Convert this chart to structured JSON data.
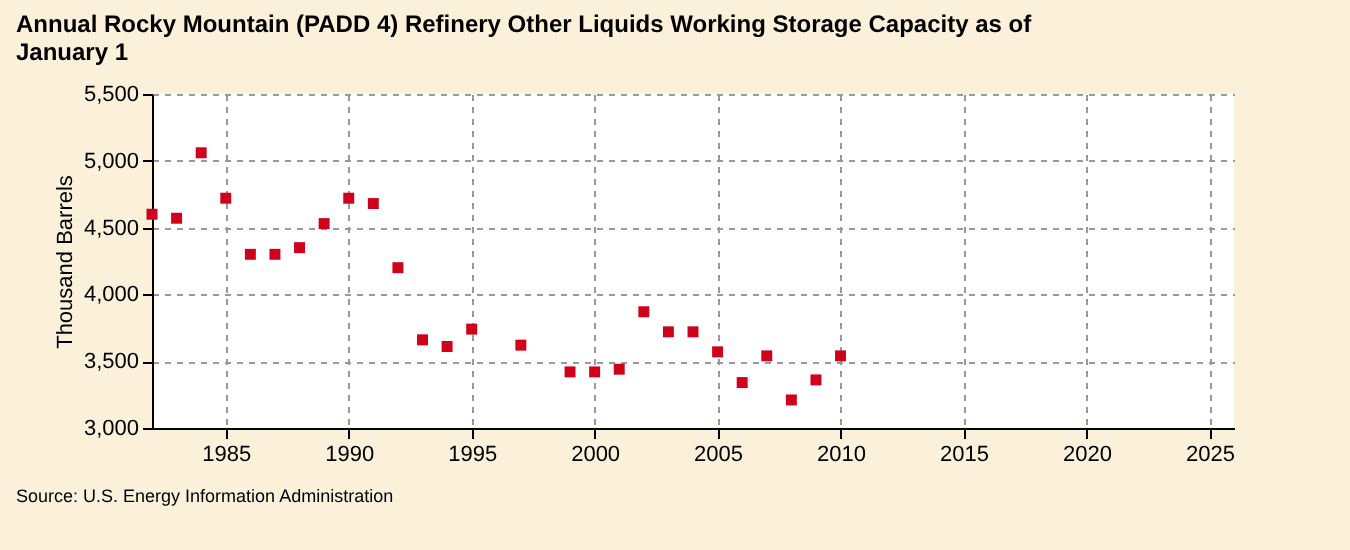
{
  "chart_data": {
    "type": "scatter",
    "title": "Annual Rocky Mountain (PADD 4) Refinery Other Liquids Working Storage Capacity as of January 1",
    "ylabel": "Thousand Barrels",
    "x": [
      1982,
      1983,
      1984,
      1985,
      1986,
      1987,
      1988,
      1989,
      1990,
      1991,
      1992,
      1993,
      1994,
      1995,
      1997,
      1999,
      2000,
      2001,
      2002,
      2003,
      2004,
      2005,
      2006,
      2007,
      2008,
      2009,
      2010
    ],
    "series": [
      {
        "color": "#d0021b",
        "values": [
          4600,
          4570,
          5060,
          4720,
          4300,
          4300,
          4350,
          4530,
          4720,
          4680,
          4200,
          3660,
          3610,
          3740,
          3620,
          3420,
          3420,
          3440,
          3870,
          3720,
          3720,
          3570,
          3340,
          3540,
          3210,
          3360,
          3540
        ]
      }
    ],
    "xlim": [
      1982,
      2026
    ],
    "xticks": [
      1985,
      1990,
      1995,
      2000,
      2005,
      2010,
      2015,
      2020,
      2025
    ],
    "ylim": [
      3000,
      5500
    ],
    "yticks": [
      {
        "value": 3000,
        "label": "3,000"
      },
      {
        "value": 3500,
        "label": "3,500"
      },
      {
        "value": 4000,
        "label": "4,000"
      },
      {
        "value": 4500,
        "label": "4,500"
      },
      {
        "value": 5000,
        "label": "5,000"
      },
      {
        "value": 5500,
        "label": "5,500"
      }
    ],
    "grid": true,
    "marker": "square",
    "legend": false,
    "annotations": [
      "Source: U.S. Energy Information Administration"
    ]
  }
}
